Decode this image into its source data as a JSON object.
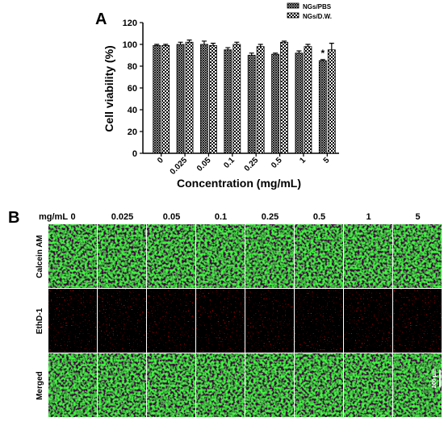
{
  "chart_data": {
    "type": "bar",
    "panel_label": "A",
    "x_label": "Concentration (mg/mL)",
    "y_label": "Cell viability (%)",
    "categories": [
      "0",
      "0.025",
      "0.05",
      "0.1",
      "0.25",
      "0.5",
      "1",
      "5"
    ],
    "series": [
      {
        "name": "NGs/PBS",
        "color": "#000000",
        "pattern": "crosshatch",
        "values": [
          99,
          100,
          100,
          95,
          90,
          91,
          92,
          85
        ],
        "errors": [
          1,
          2,
          3,
          2,
          2,
          1,
          2,
          1
        ]
      },
      {
        "name": "NGs/D.W.",
        "color": "#000000",
        "pattern": "checker",
        "values": [
          99,
          102,
          99,
          100,
          98,
          102,
          98,
          95
        ],
        "errors": [
          1,
          2,
          2,
          2,
          2,
          1,
          2,
          6
        ]
      }
    ],
    "annotation": "*",
    "ylim": [
      0,
      120
    ],
    "yticks": [
      0,
      20,
      40,
      60,
      80,
      100,
      120
    ],
    "legend": "upper right"
  },
  "panel_b": {
    "label": "B",
    "unit": "mg/mL",
    "columns": [
      "0",
      "0.025",
      "0.05",
      "0.1",
      "0.25",
      "0.5",
      "1",
      "5"
    ],
    "rows": [
      "Calcein AM",
      "EthD-1",
      "Merged"
    ],
    "scale_bar": "200 μm"
  }
}
